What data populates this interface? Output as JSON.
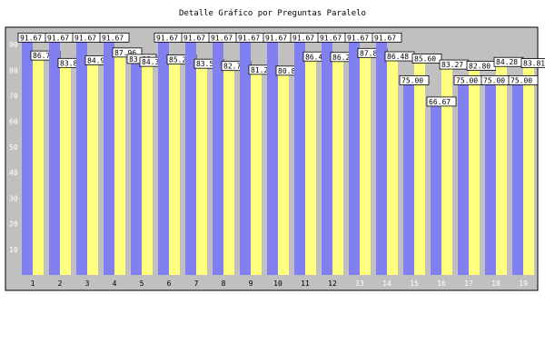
{
  "chart_data": {
    "type": "bar",
    "title": "Detalle Gráfico por Preguntas Paralelo",
    "xlabel": "",
    "ylabel": "",
    "categories": [
      "1",
      "2",
      "3",
      "4",
      "5",
      "6",
      "7",
      "8",
      "9",
      "10",
      "11",
      "12",
      "13",
      "14",
      "15",
      "16",
      "17",
      "18",
      "19"
    ],
    "series": [
      {
        "color": "#8080f0",
        "values": [
          91.67,
          91.67,
          91.67,
          91.67,
          83.33,
          91.67,
          91.67,
          91.67,
          91.67,
          91.67,
          91.67,
          91.67,
          91.67,
          91.67,
          75.0,
          66.67,
          75.0,
          75.0,
          75.0
        ]
      },
      {
        "color": "#ffff80",
        "values": [
          86.79,
          83.89,
          84.94,
          87.96,
          84.32,
          85.2,
          83.59,
          82.7,
          81.22,
          80.87,
          86.4,
          86.21,
          87.8,
          86.48,
          85.6,
          83.27,
          82.8,
          84.28,
          83.81
        ]
      }
    ],
    "value_labels_first_series": [
      "91.67",
      "91.67",
      "91.67",
      "91.67",
      "83.33",
      "91.67",
      "91.67",
      "91.67",
      "91.67",
      "91.67",
      "91.67",
      "91.67",
      "91.67",
      "91.67",
      "75.00",
      "66.67",
      "75.00",
      "75.00",
      "75.00"
    ],
    "value_labels_second_series": [
      "86.79",
      "83.89",
      "84.94",
      "87.96",
      "84.32",
      "85.20",
      "83.59",
      "82.70",
      "81.22",
      "80.87",
      "86.40",
      "86.21",
      "87.80",
      "86.48",
      "85.60",
      "83.27",
      "82.80",
      "84.28",
      "83.81"
    ],
    "ylim": [
      0,
      95
    ],
    "yticks": [
      10,
      20,
      30,
      40,
      50,
      60,
      70,
      80,
      90
    ],
    "grid": false,
    "plot_background": "#c0c0c0"
  }
}
